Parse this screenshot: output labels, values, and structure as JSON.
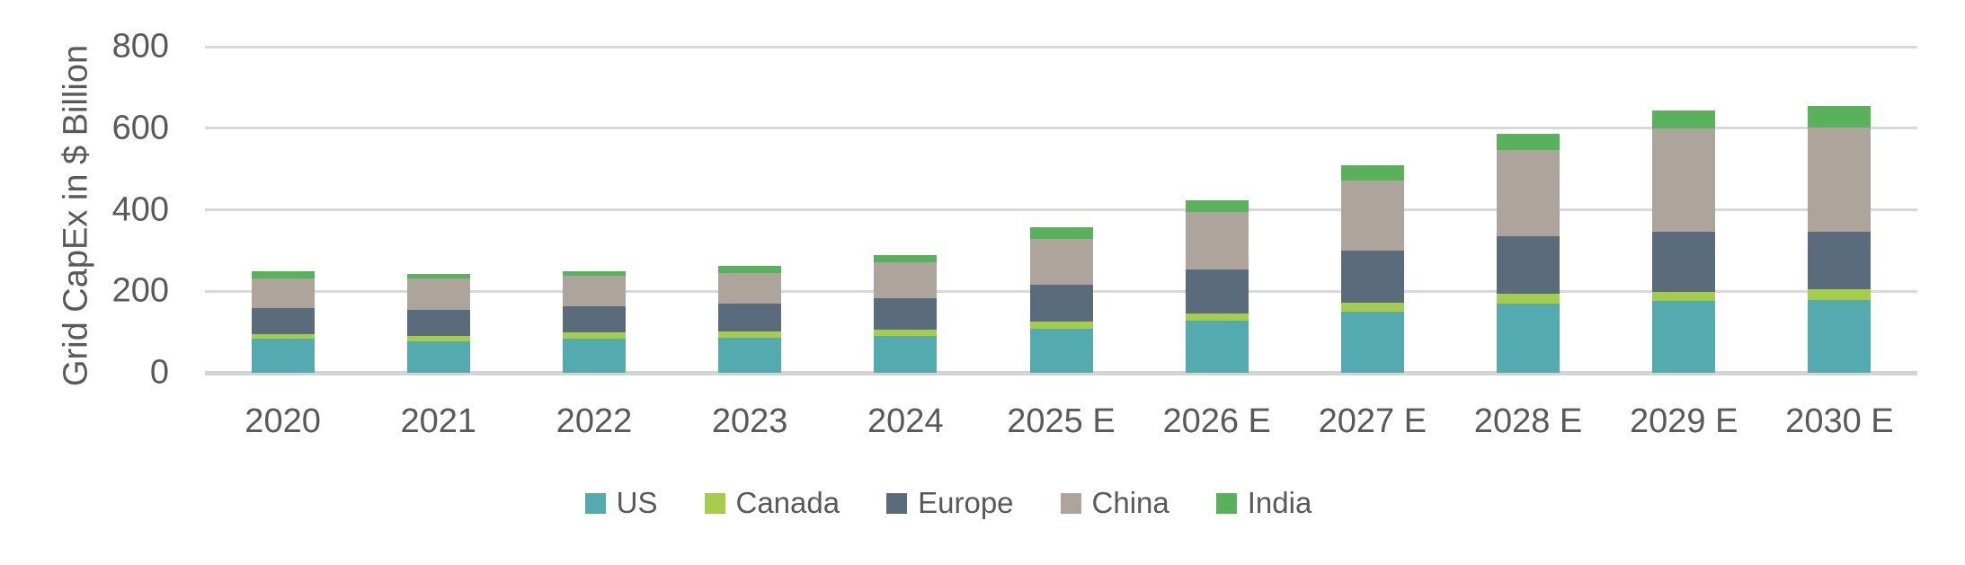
{
  "chart_data": {
    "type": "bar",
    "stacked": true,
    "title": "",
    "ylabel": "Grid CapEx in $ Billion",
    "xlabel": "",
    "ylim": [
      0,
      800
    ],
    "yticks": [
      0,
      200,
      400,
      600,
      800
    ],
    "grid": true,
    "legend_position": "bottom",
    "categories": [
      "2020",
      "2021",
      "2022",
      "2023",
      "2024",
      "2025 E",
      "2026 E",
      "2027 E",
      "2028 E",
      "2029 E",
      "2030 E"
    ],
    "series": [
      {
        "name": "US",
        "color": "#53ABAF",
        "values": [
          83,
          77,
          84,
          86,
          90,
          109,
          128,
          150,
          170,
          177,
          179
        ]
      },
      {
        "name": "Canada",
        "color": "#A5CD4A",
        "values": [
          11,
          13,
          15,
          15,
          15,
          17,
          18,
          22,
          24,
          22,
          25
        ]
      },
      {
        "name": "Europe",
        "color": "#5A6C7C",
        "values": [
          64,
          64,
          64,
          69,
          78,
          89,
          107,
          127,
          141,
          147,
          143
        ]
      },
      {
        "name": "China",
        "color": "#ADA59B",
        "values": [
          74,
          77,
          76,
          75,
          88,
          114,
          142,
          173,
          212,
          253,
          255
        ]
      },
      {
        "name": "India",
        "color": "#58B25C",
        "values": [
          16,
          12,
          11,
          18,
          17,
          28,
          29,
          36,
          39,
          44,
          53
        ]
      }
    ],
    "totals": [
      248,
      243,
      250,
      263,
      288,
      357,
      424,
      508,
      586,
      643,
      655
    ],
    "style": {
      "background": "#FFFFFF",
      "axis_text_color": "#595959",
      "gridline_color": "#D9D9D9",
      "baseline_color": "#D4D4D4"
    }
  }
}
